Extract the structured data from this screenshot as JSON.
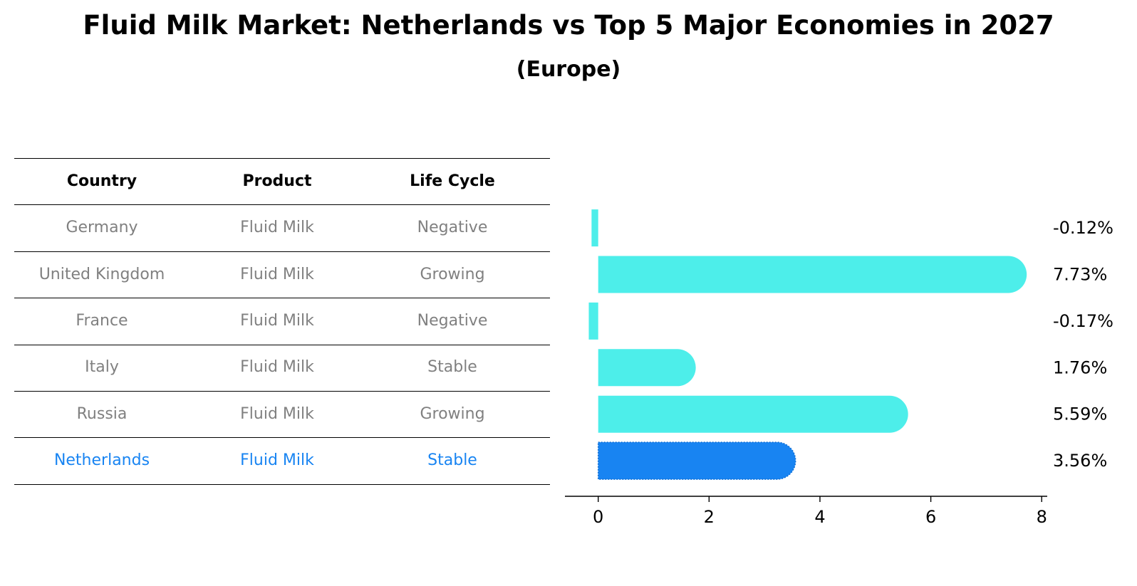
{
  "title": "Fluid Milk Market: Netherlands vs Top 5 Major Economies in 2027",
  "subtitle": "(Europe)",
  "colors": {
    "bar": "#4DEEEA",
    "highlight": "#1884F2",
    "row_text": "#808080",
    "highlight_text": "#1884F2"
  },
  "table": {
    "headers": [
      "Country",
      "Product",
      "Life Cycle"
    ],
    "rows": [
      {
        "country": "Germany",
        "product": "Fluid Milk",
        "life_cycle": "Negative",
        "highlight": false
      },
      {
        "country": "United Kingdom",
        "product": "Fluid Milk",
        "life_cycle": "Growing",
        "highlight": false
      },
      {
        "country": "France",
        "product": "Fluid Milk",
        "life_cycle": "Negative",
        "highlight": false
      },
      {
        "country": "Italy",
        "product": "Fluid Milk",
        "life_cycle": "Stable",
        "highlight": false
      },
      {
        "country": "Russia",
        "product": "Fluid Milk",
        "life_cycle": "Growing",
        "highlight": false
      },
      {
        "country": "Netherlands",
        "product": "Fluid Milk",
        "life_cycle": "Stable",
        "highlight": true
      }
    ]
  },
  "chart_data": {
    "type": "bar",
    "orientation": "horizontal",
    "categories": [
      "Germany",
      "United Kingdom",
      "France",
      "Italy",
      "Russia",
      "Netherlands"
    ],
    "values": [
      -0.12,
      7.73,
      -0.17,
      1.76,
      5.59,
      3.56
    ],
    "value_labels": [
      "-0.12%",
      "7.73%",
      "-0.17%",
      "1.76%",
      "5.59%",
      "3.56%"
    ],
    "highlight_category": "Netherlands",
    "xlim": [
      -0.6,
      8.1
    ],
    "xticks": [
      0,
      2,
      4,
      6,
      8
    ],
    "xtick_labels": [
      "0",
      "2",
      "4",
      "6",
      "8"
    ],
    "grid": false
  }
}
